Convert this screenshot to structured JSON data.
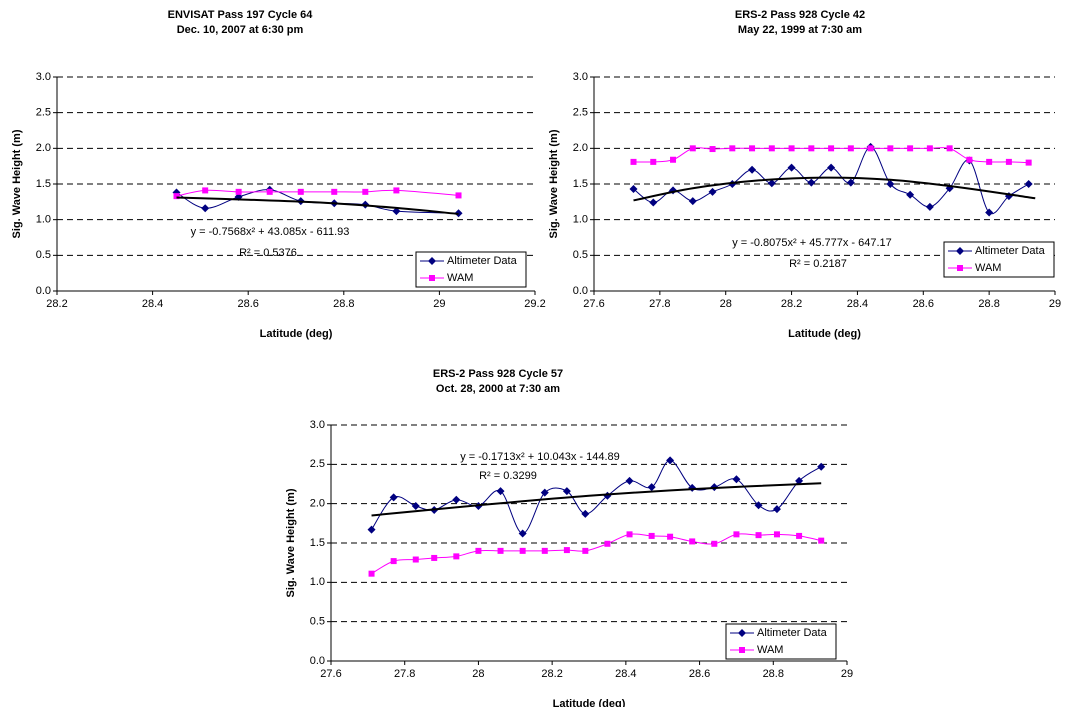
{
  "chart_data": [
    {
      "type": "line",
      "title": "ENVISAT Pass 197 Cycle 64",
      "subtitle": "Dec. 10, 2007 at 6:30 pm",
      "xlabel": "Latitude (deg)",
      "ylabel": "Sig. Wave Height (m)",
      "xlim": [
        28.2,
        29.2
      ],
      "xticks": [
        28.2,
        28.4,
        28.6,
        28.8,
        29,
        29.2
      ],
      "ylim": [
        0,
        3
      ],
      "yticks": [
        {
          "value": 0,
          "label": "0.0"
        },
        0.5,
        {
          "value": 1,
          "label": "1.0"
        },
        1.5,
        {
          "value": 2,
          "label": "2.0"
        },
        2.5,
        {
          "value": 3,
          "label": "3.0"
        }
      ],
      "grid": true,
      "legend": "lower right",
      "series": [
        {
          "name": "Altimeter Data",
          "color": "#000080",
          "marker": "diamond",
          "x": [
            28.45,
            28.51,
            28.58,
            28.645,
            28.71,
            28.78,
            28.845,
            28.91,
            29.04
          ],
          "values": [
            1.38,
            1.16,
            1.32,
            1.42,
            1.26,
            1.23,
            1.21,
            1.12,
            1.09
          ]
        },
        {
          "name": "WAM",
          "color": "#ff00ff",
          "marker": "square",
          "x": [
            28.45,
            28.51,
            28.58,
            28.645,
            28.71,
            28.78,
            28.845,
            28.91,
            29.04
          ],
          "values": [
            1.33,
            1.41,
            1.39,
            1.39,
            1.39,
            1.39,
            1.39,
            1.41,
            1.34
          ]
        }
      ],
      "trendline": {
        "color": "#000000",
        "x": [
          28.45,
          28.6,
          28.75,
          28.9,
          29.04
        ],
        "values": [
          1.31,
          1.28,
          1.24,
          1.17,
          1.08
        ]
      },
      "annotations": [
        "y = -0.7568x² + 43.085x - 611.93",
        "R² = 0.5376"
      ]
    },
    {
      "type": "line",
      "title": "ERS-2 Pass 928 Cycle 42",
      "subtitle": "May 22, 1999 at 7:30 am",
      "xlabel": "Latitude (deg)",
      "ylabel": "Sig. Wave Height (m)",
      "xlim": [
        27.6,
        29
      ],
      "xticks": [
        27.6,
        27.8,
        28,
        28.2,
        28.4,
        28.6,
        28.8,
        29
      ],
      "ylim": [
        0,
        3
      ],
      "yticks": [
        {
          "value": 0,
          "label": "0.0"
        },
        0.5,
        {
          "value": 1,
          "label": "1.0"
        },
        1.5,
        {
          "value": 2,
          "label": "2.0"
        },
        2.5,
        {
          "value": 3,
          "label": "3.0"
        }
      ],
      "grid": true,
      "legend": "lower right",
      "series": [
        {
          "name": "Altimeter Data",
          "color": "#000080",
          "marker": "diamond",
          "x": [
            27.72,
            27.78,
            27.84,
            27.9,
            27.96,
            28.02,
            28.08,
            28.14,
            28.2,
            28.26,
            28.32,
            28.38,
            28.44,
            28.5,
            28.56,
            28.62,
            28.68,
            28.74,
            28.8,
            28.86,
            28.92
          ],
          "values": [
            1.43,
            1.24,
            1.41,
            1.26,
            1.39,
            1.5,
            1.7,
            1.51,
            1.73,
            1.52,
            1.73,
            1.52,
            2.02,
            1.5,
            1.35,
            1.18,
            1.44,
            1.83,
            1.1,
            1.33,
            1.5
          ]
        },
        {
          "name": "WAM",
          "color": "#ff00ff",
          "marker": "square",
          "x": [
            27.72,
            27.78,
            27.84,
            27.9,
            27.96,
            28.02,
            28.08,
            28.14,
            28.2,
            28.26,
            28.32,
            28.38,
            28.44,
            28.5,
            28.56,
            28.62,
            28.68,
            28.74,
            28.8,
            28.86,
            28.92
          ],
          "values": [
            1.81,
            1.81,
            1.84,
            2.0,
            1.99,
            2.0,
            2.0,
            2.0,
            2.0,
            2.0,
            2.0,
            2.0,
            2.0,
            2.0,
            2.0,
            2.0,
            2.0,
            1.84,
            1.81,
            1.81,
            1.8
          ]
        }
      ],
      "trendline": {
        "color": "#000000",
        "x": [
          27.72,
          27.9,
          28.1,
          28.3,
          28.5,
          28.7,
          28.94
        ],
        "values": [
          1.27,
          1.44,
          1.55,
          1.59,
          1.56,
          1.46,
          1.3
        ]
      },
      "annotations": [
        "y = -0.8075x² + 45.777x - 647.17",
        "R² = 0.2187"
      ]
    },
    {
      "type": "line",
      "title": "ERS-2 Pass 928 Cycle 57",
      "subtitle": "Oct. 28, 2000 at 7:30 am",
      "xlabel": "Latitude (deg)",
      "ylabel": "Sig. Wave Height (m)",
      "xlim": [
        27.6,
        29
      ],
      "xticks": [
        27.6,
        27.8,
        28,
        28.2,
        28.4,
        28.6,
        28.8,
        29
      ],
      "ylim": [
        0,
        3
      ],
      "yticks": [
        {
          "value": 0,
          "label": "0.0"
        },
        0.5,
        {
          "value": 1,
          "label": "1.0"
        },
        1.5,
        {
          "value": 2,
          "label": "2.0"
        },
        2.5,
        {
          "value": 3,
          "label": "3.0"
        }
      ],
      "grid": true,
      "legend": "lower right",
      "series": [
        {
          "name": "Altimeter Data",
          "color": "#000080",
          "marker": "diamond",
          "x": [
            27.71,
            27.77,
            27.83,
            27.88,
            27.94,
            28.0,
            28.06,
            28.12,
            28.18,
            28.24,
            28.29,
            28.35,
            28.41,
            28.47,
            28.52,
            28.58,
            28.64,
            28.7,
            28.76,
            28.81,
            28.87,
            28.93
          ],
          "values": [
            1.67,
            2.08,
            1.97,
            1.92,
            2.05,
            1.97,
            2.16,
            1.62,
            2.14,
            2.16,
            1.87,
            2.1,
            2.29,
            2.21,
            2.55,
            2.2,
            2.21,
            2.31,
            1.98,
            1.93,
            2.29,
            2.47
          ]
        },
        {
          "name": "WAM",
          "color": "#ff00ff",
          "marker": "square",
          "x": [
            27.71,
            27.77,
            27.83,
            27.88,
            27.94,
            28.0,
            28.06,
            28.12,
            28.18,
            28.24,
            28.29,
            28.35,
            28.41,
            28.47,
            28.52,
            28.58,
            28.64,
            28.7,
            28.76,
            28.81,
            28.87,
            28.93
          ],
          "values": [
            1.11,
            1.27,
            1.29,
            1.31,
            1.33,
            1.4,
            1.4,
            1.4,
            1.4,
            1.41,
            1.4,
            1.49,
            1.61,
            1.59,
            1.58,
            1.52,
            1.49,
            1.61,
            1.6,
            1.61,
            1.59,
            1.53
          ]
        }
      ],
      "trendline": {
        "color": "#000000",
        "x": [
          27.71,
          28.0,
          28.3,
          28.6,
          28.93
        ],
        "values": [
          1.85,
          1.98,
          2.1,
          2.19,
          2.26
        ]
      },
      "annotations": [
        "y = -0.1713x² + 10.043x - 144.89",
        "R² = 0.3299"
      ]
    }
  ]
}
